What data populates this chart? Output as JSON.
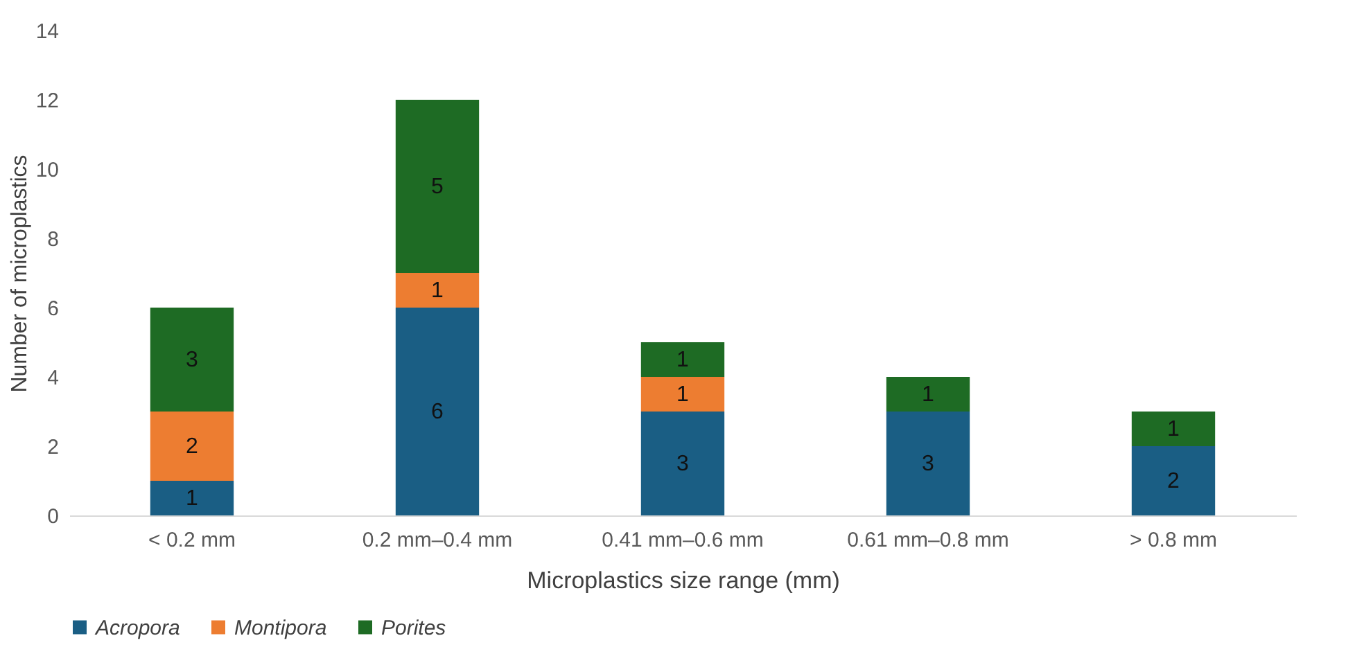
{
  "chart_data": {
    "type": "bar",
    "stacked": true,
    "xlabel": "Microplastics size range (mm)",
    "ylabel": "Number of microplastics",
    "categories": [
      "< 0.2 mm",
      "0.2 mm–0.4 mm",
      "0.41 mm–0.6 mm",
      "0.61 mm–0.8 mm",
      "> 0.8 mm"
    ],
    "series": [
      {
        "name": "Acropora",
        "color": "#1a5e84",
        "values": [
          1,
          6,
          3,
          3,
          2
        ]
      },
      {
        "name": "Montipora",
        "color": "#ed7d31",
        "values": [
          2,
          1,
          1,
          null,
          null
        ]
      },
      {
        "name": "Porites",
        "color": "#1e6b24",
        "values": [
          3,
          5,
          1,
          1,
          1
        ]
      }
    ],
    "ylim": [
      0,
      14
    ],
    "yticks": [
      0,
      2,
      4,
      6,
      8,
      10,
      12,
      14
    ],
    "data_labels": true,
    "legend": "bottom"
  }
}
